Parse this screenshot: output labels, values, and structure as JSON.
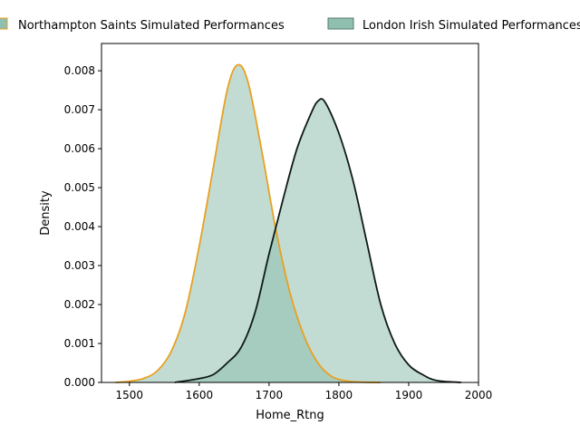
{
  "chart_data": {
    "type": "area",
    "xlabel": "Home_Rtng",
    "ylabel": "Density",
    "xlim": [
      1460,
      2000
    ],
    "ylim": [
      0,
      0.0087
    ],
    "x_ticks": [
      1500,
      1600,
      1700,
      1800,
      1900,
      2000
    ],
    "x_tick_labels": [
      "1500",
      "1600",
      "1700",
      "1800",
      "1900",
      "2000"
    ],
    "y_ticks": [
      0,
      0.001,
      0.002,
      0.003,
      0.004,
      0.005,
      0.006,
      0.007,
      0.008
    ],
    "y_tick_labels": [
      "0.000",
      "0.001",
      "0.002",
      "0.003",
      "0.004",
      "0.005",
      "0.006",
      "0.007",
      "0.008"
    ],
    "grid": false,
    "legend_placement": "top, above plot",
    "series": [
      {
        "name": "Northampton Saints Simulated Performances",
        "line_color": "#E8A020",
        "fill_color": "#8FBFAF",
        "fill_opacity": 0.55,
        "x": [
          1480,
          1500,
          1520,
          1540,
          1560,
          1580,
          1600,
          1620,
          1640,
          1655,
          1670,
          1690,
          1710,
          1730,
          1750,
          1770,
          1790,
          1810,
          1830,
          1860
        ],
        "y": [
          0.0,
          3e-05,
          0.0001,
          0.0003,
          0.0008,
          0.0018,
          0.0035,
          0.0055,
          0.0075,
          0.00815,
          0.0077,
          0.0059,
          0.0039,
          0.0023,
          0.0012,
          0.0005,
          0.00015,
          4e-05,
          1e-05,
          0.0
        ]
      },
      {
        "name": "London Irish Simulated Performances",
        "line_color": "#0E1A14",
        "fill_color": "#8FBFAF",
        "fill_opacity": 0.55,
        "x": [
          1565,
          1600,
          1620,
          1640,
          1660,
          1680,
          1700,
          1720,
          1740,
          1760,
          1770,
          1780,
          1800,
          1820,
          1840,
          1860,
          1880,
          1900,
          1920,
          1940,
          1975
        ],
        "y": [
          0.0,
          0.0001,
          0.0002,
          0.0005,
          0.0009,
          0.0018,
          0.0033,
          0.0047,
          0.006,
          0.0069,
          0.00722,
          0.0072,
          0.0064,
          0.0052,
          0.0036,
          0.002,
          0.001,
          0.00045,
          0.0002,
          5e-05,
          0.0
        ]
      }
    ]
  }
}
